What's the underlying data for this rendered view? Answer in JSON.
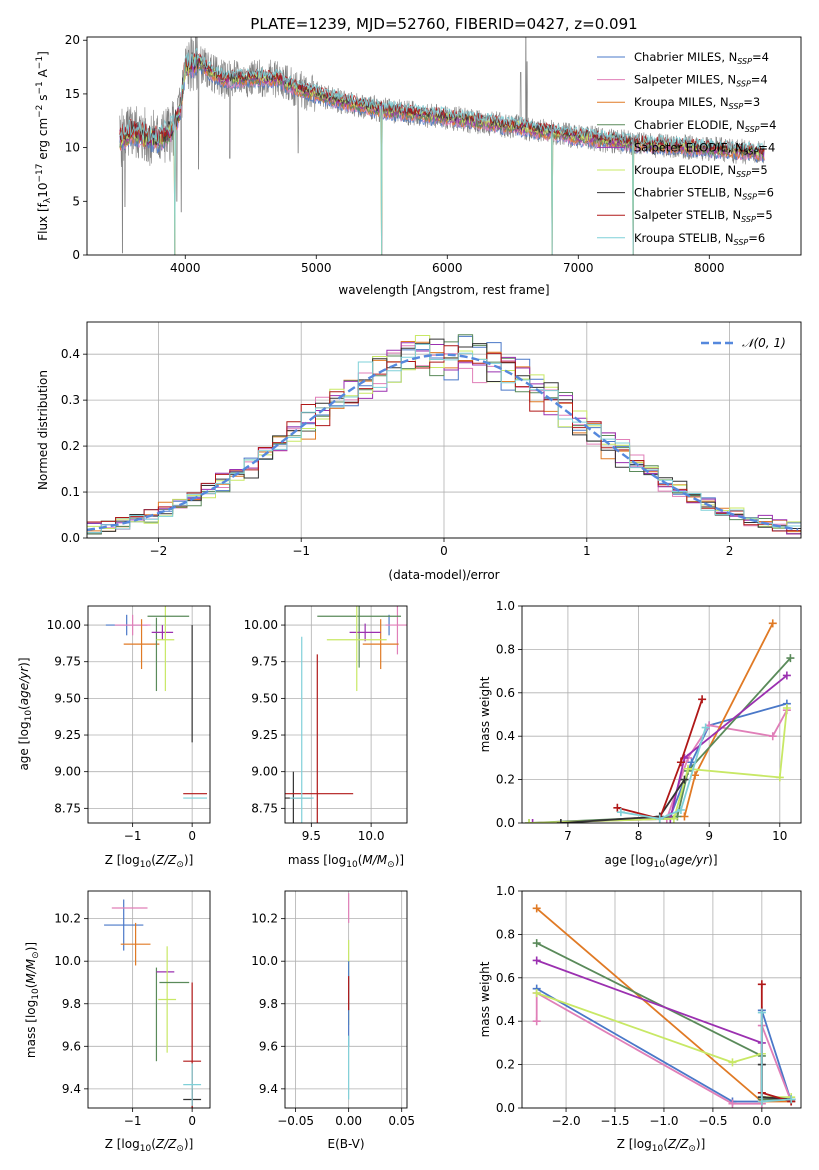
{
  "title": "PLATE=1239, MJD=52760, FIBERID=0427, z=0.091",
  "colors": {
    "Chabrier MILES": "#4a78c8",
    "Salpeter MILES": "#e07fb8",
    "Kroupa MILES": "#e07a25",
    "Chabrier ELODIE": "#5a8a5a",
    "Salpeter ELODIE": "#9b30b0",
    "Kroupa ELODIE": "#c8e865",
    "Chabrier STELIB": "#333333",
    "Salpeter STELIB": "#b01818",
    "Kroupa STELIB": "#7fd0d8",
    "data": "#808080",
    "normal": "#5588dd",
    "grid": "#b0b0b0"
  },
  "chart_data": [
    {
      "id": "spectrum",
      "type": "line",
      "xlabel": "wavelength [Angstrom, rest frame]",
      "ylabel": "Flux [f",
      "xlim": [
        3250,
        8700
      ],
      "ylim": [
        0,
        20.3
      ],
      "xticks": [
        4000,
        5000,
        6000,
        7000,
        8000
      ],
      "yticks": [
        0,
        5,
        10,
        15,
        20
      ],
      "legend_position": "upper-right",
      "legend": [
        {
          "name": "Chabrier MILES",
          "n": 4
        },
        {
          "name": "Salpeter MILES",
          "n": 4
        },
        {
          "name": "Kroupa MILES",
          "n": 3
        },
        {
          "name": "Chabrier ELODIE",
          "n": 4
        },
        {
          "name": "Salpeter ELODIE",
          "n": 4
        },
        {
          "name": "Kroupa ELODIE",
          "n": 5
        },
        {
          "name": "Chabrier STELIB",
          "n": 6
        },
        {
          "name": "Salpeter STELIB",
          "n": 5
        },
        {
          "name": "Kroupa STELIB",
          "n": 6
        }
      ],
      "continuum": [
        [
          3500,
          10.8
        ],
        [
          3600,
          11.5
        ],
        [
          3700,
          11.0
        ],
        [
          3800,
          10.8
        ],
        [
          3900,
          11.6
        ],
        [
          3960,
          13.5
        ],
        [
          4000,
          17.5
        ],
        [
          4100,
          18.0
        ],
        [
          4200,
          17.0
        ],
        [
          4300,
          16.3
        ],
        [
          4500,
          16.5
        ],
        [
          4700,
          16.4
        ],
        [
          4850,
          15.5
        ],
        [
          5000,
          15.0
        ],
        [
          5200,
          14.3
        ],
        [
          5500,
          13.5
        ],
        [
          6000,
          12.8
        ],
        [
          6500,
          12.0
        ],
        [
          7000,
          11.0
        ],
        [
          7500,
          10.3
        ],
        [
          8000,
          9.9
        ],
        [
          8400,
          9.5
        ]
      ],
      "spikes": [
        [
          3520,
          0.2
        ],
        [
          3540,
          4.5
        ],
        [
          3920,
          0.0
        ],
        [
          3935,
          5.0
        ],
        [
          3970,
          4.0
        ],
        [
          4102,
          8.0
        ],
        [
          4340,
          9.0
        ],
        [
          4862,
          9.5
        ],
        [
          5500,
          0.0
        ],
        [
          6560,
          17.0
        ],
        [
          6600,
          21.0
        ],
        [
          6610,
          18.0
        ],
        [
          6800,
          0.0
        ],
        [
          7420,
          0.0
        ]
      ]
    },
    {
      "id": "residuals",
      "type": "histogram",
      "xlabel": "(data-model)/error",
      "ylabel": "Normed distribution",
      "xlim": [
        -2.5,
        2.5
      ],
      "ylim": [
        0,
        0.47
      ],
      "xticks": [
        -2,
        -1,
        0,
        1,
        2
      ],
      "yticks": [
        0.0,
        0.1,
        0.2,
        0.3,
        0.4
      ],
      "bin_width": 0.1,
      "legend": "𝒩(0, 1)",
      "legend_position": "upper-right",
      "series": [
        {
          "name": "Chabrier MILES",
          "seed": 3
        },
        {
          "name": "Salpeter MILES",
          "seed": 7
        },
        {
          "name": "Kroupa MILES",
          "seed": 11
        },
        {
          "name": "Chabrier ELODIE",
          "seed": 17
        },
        {
          "name": "Salpeter ELODIE",
          "seed": 23
        },
        {
          "name": "Kroupa ELODIE",
          "seed": 29
        },
        {
          "name": "Chabrier STELIB",
          "seed": 31
        },
        {
          "name": "Salpeter STELIB",
          "seed": 37
        },
        {
          "name": "Kroupa STELIB",
          "seed": 41
        }
      ]
    },
    {
      "id": "age-z",
      "type": "errorbar",
      "xlabel": "Z [log",
      "ylabel": "age  [log",
      "xlim": [
        -1.75,
        0.3
      ],
      "ylim": [
        8.65,
        10.13
      ],
      "xticks": [
        -1,
        0
      ],
      "yticks": [
        8.75,
        9.0,
        9.25,
        9.5,
        9.75,
        10.0
      ],
      "points": [
        {
          "name": "Chabrier MILES",
          "x": -1.1,
          "xerr": 0.35,
          "y": 10.0,
          "yerr": 0.07
        },
        {
          "name": "Salpeter MILES",
          "x": -1.0,
          "xerr": 0.3,
          "y": 10.0,
          "yerr": 0.07
        },
        {
          "name": "Kroupa MILES",
          "x": -0.85,
          "xerr": 0.3,
          "y": 9.87,
          "yerr": 0.17
        },
        {
          "name": "Chabrier ELODIE",
          "x": -0.6,
          "xerr": 0.0,
          "y": 9.8,
          "yerr": 0.25
        },
        {
          "name": "Salpeter ELODIE",
          "x": -0.5,
          "xerr": 0.18,
          "y": 9.95,
          "yerr": 0.05
        },
        {
          "name": "Kroupa ELODIE",
          "x": -0.45,
          "xerr": 0.15,
          "y": 9.9,
          "yerr": 0.35
        },
        {
          "name": "Chabrier STELIB",
          "x": 0.0,
          "xerr": 0.0,
          "y": 9.6,
          "yerr": 0.4
        },
        {
          "name": "Salpeter STELIB",
          "x": 0.05,
          "xerr": 0.2,
          "y": 8.85,
          "yerr": 0.0
        },
        {
          "name": "Kroupa STELIB",
          "x": 0.05,
          "xerr": 0.2,
          "y": 8.82,
          "yerr": 0.0
        },
        {
          "name": "Chabrier ELODIE",
          "x": -0.4,
          "xerr": 0.35,
          "y": 10.06,
          "yerr": 0.0
        }
      ]
    },
    {
      "id": "age-mass",
      "type": "errorbar",
      "xlabel": "mass [log",
      "ylabel": "",
      "xlim": [
        9.28,
        10.3
      ],
      "ylim": [
        8.65,
        10.13
      ],
      "xticks": [
        9.5,
        10.0
      ],
      "yticks": [
        8.75,
        9.0,
        9.25,
        9.5,
        9.75,
        10.0
      ],
      "points": [
        {
          "name": "Chabrier MILES",
          "x": 10.15,
          "xerr": 0.0,
          "y": 10.0,
          "yerr": 0.07
        },
        {
          "name": "Salpeter MILES",
          "x": 10.22,
          "xerr": 0.1,
          "y": 10.0,
          "yerr": 0.2
        },
        {
          "name": "Kroupa MILES",
          "x": 10.08,
          "xerr": 0.15,
          "y": 9.87,
          "yerr": 0.17
        },
        {
          "name": "Chabrier ELODIE",
          "x": 9.9,
          "xerr": 0.35,
          "y": 10.06,
          "yerr": 0.35
        },
        {
          "name": "Salpeter ELODIE",
          "x": 9.95,
          "xerr": 0.13,
          "y": 9.95,
          "yerr": 0.06
        },
        {
          "name": "Kroupa ELODIE",
          "x": 9.88,
          "xerr": 0.25,
          "y": 9.9,
          "yerr": 0.35
        },
        {
          "name": "Chabrier STELIB",
          "x": 9.35,
          "xerr": 0.15,
          "y": 8.82,
          "yerr": 0.18
        },
        {
          "name": "Salpeter STELIB",
          "x": 9.55,
          "xerr": 0.3,
          "y": 8.85,
          "yerr": 0.95
        },
        {
          "name": "Kroupa STELIB",
          "x": 9.42,
          "xerr": 0.1,
          "y": 8.82,
          "yerr": 1.1
        }
      ]
    },
    {
      "id": "weight-age",
      "type": "line",
      "xlabel": "age  [log",
      "ylabel": "mass weight",
      "xlim": [
        6.35,
        10.3
      ],
      "ylim": [
        0,
        1.0
      ],
      "xticks": [
        7,
        8,
        9,
        10
      ],
      "yticks": [
        0.0,
        0.2,
        0.4,
        0.6,
        0.8,
        1.0
      ],
      "series": [
        {
          "name": "Chabrier MILES",
          "x": [
            8.45,
            8.75,
            9.0,
            10.1
          ],
          "y": [
            0.03,
            0.28,
            0.45,
            0.55
          ]
        },
        {
          "name": "Salpeter MILES",
          "x": [
            8.4,
            8.7,
            9.0,
            9.9,
            10.1
          ],
          "y": [
            0.02,
            0.3,
            0.45,
            0.4,
            0.52
          ]
        },
        {
          "name": "Kroupa MILES",
          "x": [
            8.65,
            8.8,
            9.9
          ],
          "y": [
            0.03,
            0.22,
            0.92
          ]
        },
        {
          "name": "Chabrier ELODIE",
          "x": [
            6.45,
            8.55,
            8.7,
            10.15
          ],
          "y": [
            0.0,
            0.03,
            0.24,
            0.76
          ]
        },
        {
          "name": "Salpeter ELODIE",
          "x": [
            6.5,
            8.45,
            8.65,
            10.1
          ],
          "y": [
            0.0,
            0.02,
            0.3,
            0.68
          ]
        },
        {
          "name": "Kroupa ELODIE",
          "x": [
            6.45,
            8.5,
            8.7,
            10.0,
            10.1
          ],
          "y": [
            0.0,
            0.02,
            0.25,
            0.21,
            0.53
          ]
        },
        {
          "name": "Chabrier STELIB",
          "x": [
            6.9,
            8.3,
            8.65
          ],
          "y": [
            0.0,
            0.03,
            0.2
          ]
        },
        {
          "name": "Salpeter STELIB",
          "x": [
            7.7,
            8.3,
            8.6,
            8.9
          ],
          "y": [
            0.07,
            0.02,
            0.28,
            0.57
          ]
        },
        {
          "name": "Kroupa STELIB",
          "x": [
            7.75,
            8.3,
            8.6,
            8.95
          ],
          "y": [
            0.05,
            0.02,
            0.06,
            0.44
          ]
        }
      ]
    },
    {
      "id": "mass-z",
      "type": "errorbar",
      "xlabel": "Z [log",
      "ylabel": "mass [log",
      "xlim": [
        -1.75,
        0.3
      ],
      "ylim": [
        9.31,
        10.33
      ],
      "xticks": [
        -1,
        0
      ],
      "yticks": [
        9.4,
        9.6,
        9.8,
        10.0,
        10.2
      ],
      "points": [
        {
          "name": "Chabrier MILES",
          "x": -1.15,
          "xerr": 0.33,
          "y": 10.17,
          "yerr": 0.12
        },
        {
          "name": "Salpeter MILES",
          "x": -1.05,
          "xerr": 0.3,
          "y": 10.25,
          "yerr": 0.0
        },
        {
          "name": "Kroupa MILES",
          "x": -0.95,
          "xerr": 0.25,
          "y": 10.08,
          "yerr": 0.1
        },
        {
          "name": "Chabrier ELODIE",
          "x": -0.6,
          "xerr": 0.0,
          "y": 9.75,
          "yerr": 0.22
        },
        {
          "name": "Salpeter ELODIE",
          "x": -0.45,
          "xerr": 0.15,
          "y": 9.95,
          "yerr": 0.0
        },
        {
          "name": "Kroupa ELODIE",
          "x": -0.42,
          "xerr": 0.15,
          "y": 9.82,
          "yerr": 0.25
        },
        {
          "name": "Chabrier ELODIE",
          "x": -0.3,
          "xerr": 0.25,
          "y": 9.9,
          "yerr": 0.0
        },
        {
          "name": "Chabrier STELIB",
          "x": 0.0,
          "xerr": 0.15,
          "y": 9.35,
          "yerr": 0.05
        },
        {
          "name": "Salpeter STELIB",
          "x": 0.0,
          "xerr": 0.15,
          "y": 9.53,
          "yerr": 0.37
        },
        {
          "name": "Kroupa STELIB",
          "x": 0.0,
          "xerr": 0.15,
          "y": 9.42,
          "yerr": 0.1
        }
      ]
    },
    {
      "id": "mass-ebv",
      "type": "errorbar",
      "xlabel": "E(B-V)",
      "ylabel": "",
      "xlim": [
        -0.06,
        0.055
      ],
      "ylim": [
        9.31,
        10.33
      ],
      "xticks": [
        -0.05,
        0.0,
        0.05
      ],
      "yticks": [
        9.4,
        9.6,
        9.8,
        10.0,
        10.2
      ],
      "points": [
        {
          "name": "Salpeter MILES",
          "x": 0.0,
          "xerr": 0.0,
          "y": 10.25,
          "yerr": 0.07
        },
        {
          "name": "Kroupa ELODIE",
          "x": 0.0,
          "xerr": 0.0,
          "y": 9.9,
          "yerr": 0.2
        },
        {
          "name": "Chabrier MILES",
          "x": 0.0,
          "xerr": 0.0,
          "y": 9.8,
          "yerr": 0.2
        },
        {
          "name": "Salpeter STELIB",
          "x": 0.0,
          "xerr": 0.0,
          "y": 9.85,
          "yerr": 0.08
        },
        {
          "name": "Kroupa STELIB",
          "x": 0.0,
          "xerr": 0.0,
          "y": 9.5,
          "yerr": 0.15
        }
      ]
    },
    {
      "id": "weight-z",
      "type": "line",
      "xlabel": "Z [log",
      "ylabel": "mass weight",
      "xlim": [
        -2.45,
        0.4
      ],
      "ylim": [
        0,
        1.0
      ],
      "xticks": [
        -2.0,
        -1.5,
        -1.0,
        -0.5,
        0.0
      ],
      "yticks": [
        0.0,
        0.2,
        0.4,
        0.6,
        0.8,
        1.0
      ],
      "series": [
        {
          "name": "Chabrier MILES",
          "x": [
            -2.3,
            -0.3,
            0.0,
            0.0,
            0.3
          ],
          "y": [
            0.55,
            0.03,
            0.03,
            0.45,
            0.03
          ]
        },
        {
          "name": "Salpeter MILES",
          "x": [
            -2.3,
            -2.3,
            -0.3,
            0.0,
            0.0,
            0.3
          ],
          "y": [
            0.4,
            0.53,
            0.02,
            0.02,
            0.38,
            0.03
          ]
        },
        {
          "name": "Kroupa MILES",
          "x": [
            -2.3,
            0.0,
            0.3
          ],
          "y": [
            0.92,
            0.03,
            0.03
          ]
        },
        {
          "name": "Chabrier ELODIE",
          "x": [
            -2.3,
            0.0,
            0.0,
            0.3
          ],
          "y": [
            0.76,
            0.24,
            0.04,
            0.04
          ]
        },
        {
          "name": "Salpeter ELODIE",
          "x": [
            -2.3,
            0.0,
            0.0,
            0.3
          ],
          "y": [
            0.68,
            0.3,
            0.05,
            0.04
          ]
        },
        {
          "name": "Kroupa ELODIE",
          "x": [
            -2.3,
            -0.3,
            0.0,
            0.0,
            0.3
          ],
          "y": [
            0.53,
            0.21,
            0.25,
            0.05,
            0.05
          ]
        },
        {
          "name": "Chabrier STELIB",
          "x": [
            0.0,
            0.0,
            0.3
          ],
          "y": [
            0.2,
            0.05,
            0.04
          ]
        },
        {
          "name": "Salpeter STELIB",
          "x": [
            0.0,
            0.0,
            0.3
          ],
          "y": [
            0.57,
            0.07,
            0.03
          ]
        },
        {
          "name": "Kroupa STELIB",
          "x": [
            0.0,
            0.0,
            0.3
          ],
          "y": [
            0.44,
            0.03,
            0.04
          ]
        }
      ]
    }
  ]
}
